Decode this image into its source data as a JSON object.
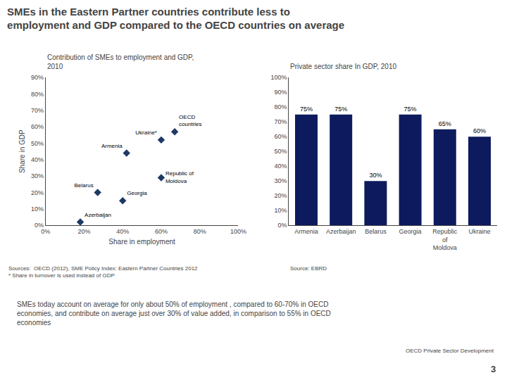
{
  "title": "SMEs in the Eastern Partner countries contribute less to\nemployment and GDP compared to the OECD countries on average",
  "annotations": [
    "SMEs today account on average for only about 50% of employment , compared to 60-70% in OECD\neconomies, and contribute on average just over 30% of value added, in comparison to 55% in OECD\neconomies",
    "OECD Private Sector Development",
    "3"
  ],
  "chart_data": [
    {
      "type": "scatter",
      "title": "Contribution of SMEs to employment and GDP,\n2010",
      "x_label": "Share in employment",
      "y_label": "Share in GDP",
      "labels": [
        "Azerbaijan",
        "Belarus",
        "Georgia",
        "Armenia",
        "Republic of\nMoldova",
        "Ukraine*",
        "OECD\ncountries"
      ],
      "x": [
        0.18,
        0.27,
        0.4,
        0.42,
        0.6,
        0.6,
        0.67
      ],
      "values": [
        0.02,
        0.2,
        0.15,
        0.44,
        0.29,
        0.52,
        0.57
      ],
      "color": "#1F3864",
      "marker": "diamond",
      "xlim": [
        0,
        1.0
      ],
      "ylim": [
        0,
        0.9
      ],
      "xticks": [
        {
          "value": 0.0,
          "label": "0%"
        },
        {
          "value": 0.2,
          "label": "20%"
        },
        {
          "value": 0.4,
          "label": "40%"
        },
        {
          "value": 0.6,
          "label": "60%"
        },
        {
          "value": 0.8,
          "label": "80%"
        },
        {
          "value": 1.0,
          "label": "100%"
        }
      ],
      "yticks": [
        {
          "value": 0.0,
          "label": "0%"
        },
        {
          "value": 0.1,
          "label": "10%"
        },
        {
          "value": 0.2,
          "label": "20%"
        },
        {
          "value": 0.3,
          "label": "30%"
        },
        {
          "value": 0.4,
          "label": "40%"
        },
        {
          "value": 0.5,
          "label": "50%"
        },
        {
          "value": 0.6,
          "label": "60%"
        },
        {
          "value": 0.7,
          "label": "70%"
        },
        {
          "value": 0.8,
          "label": "80%"
        },
        {
          "value": 0.9,
          "label": "90%"
        }
      ],
      "grid": false,
      "annotations": [
        "Sources:  OECD (2012), SME Policy Index: Eastern Partner Countries 2012\n* Share in turnover is used instead of GDP"
      ]
    },
    {
      "type": "bar",
      "title": "Private sector share In GDP, 2010",
      "categories": [
        "Armenia",
        "Azerbaijan",
        "Belarus",
        "Georgia",
        "Republic\nof\nMoldova",
        "Ukraine"
      ],
      "values": [
        0.75,
        0.75,
        0.3,
        0.75,
        0.65,
        0.6
      ],
      "value_labels": [
        "75%",
        "75%",
        "30%",
        "75%",
        "65%",
        "60%"
      ],
      "data_labels": true,
      "color": "#0D1B5E",
      "ylim": [
        0,
        1.0
      ],
      "yticks": [
        {
          "value": 0.0,
          "label": "0%"
        },
        {
          "value": 0.1,
          "label": "10%"
        },
        {
          "value": 0.2,
          "label": "20%"
        },
        {
          "value": 0.3,
          "label": "30%"
        },
        {
          "value": 0.4,
          "label": "40%"
        },
        {
          "value": 0.5,
          "label": "50%"
        },
        {
          "value": 0.6,
          "label": "60%"
        },
        {
          "value": 0.7,
          "label": "70%"
        },
        {
          "value": 0.8,
          "label": "80%"
        },
        {
          "value": 0.9,
          "label": "90%"
        },
        {
          "value": 1.0,
          "label": "100%"
        }
      ],
      "grid": false,
      "annotations": [
        "Source: EBRD"
      ]
    }
  ]
}
